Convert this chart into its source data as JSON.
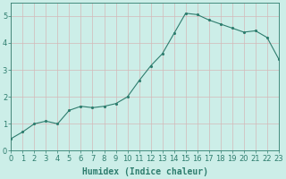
{
  "xlabel": "Humidex (Indice chaleur)",
  "x": [
    0,
    1,
    2,
    3,
    4,
    5,
    6,
    7,
    8,
    9,
    10,
    11,
    12,
    13,
    14,
    15,
    16,
    17,
    18,
    19,
    20,
    21,
    22,
    23
  ],
  "y": [
    0.45,
    0.7,
    1.0,
    1.1,
    1.0,
    1.5,
    1.65,
    1.6,
    1.65,
    1.75,
    2.0,
    2.6,
    3.15,
    3.6,
    4.35,
    5.1,
    5.05,
    4.85,
    4.7,
    4.55,
    4.4,
    4.45,
    4.2,
    3.4
  ],
  "xlim": [
    0,
    23
  ],
  "ylim": [
    0,
    5.5
  ],
  "yticks": [
    0,
    1,
    2,
    3,
    4,
    5
  ],
  "xticks": [
    0,
    1,
    2,
    3,
    4,
    5,
    6,
    7,
    8,
    9,
    10,
    11,
    12,
    13,
    14,
    15,
    16,
    17,
    18,
    19,
    20,
    21,
    22,
    23
  ],
  "line_color": "#2e7d6e",
  "marker_color": "#2e7d6e",
  "bg_color": "#cceee8",
  "grid_color_h": "#d4b8b8",
  "grid_color_v": "#d4b8b8",
  "xlabel_fontsize": 7,
  "tick_fontsize": 6
}
